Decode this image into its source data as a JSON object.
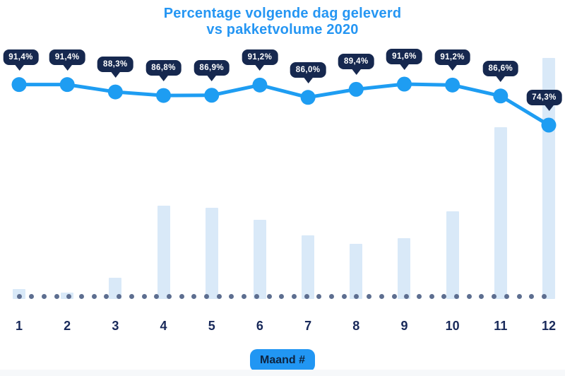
{
  "title": {
    "full": "Percentage volgende dag geleverd vs pakketvolume 2020",
    "line1": "Percentage volgende dag geleverd",
    "line2": "vs pakketvolume 2020"
  },
  "x_axis": {
    "label": "Maand #"
  },
  "colors": {
    "title_blue": "#2596f3",
    "line_blue": "#1e9df2",
    "badge_navy": "#16284f",
    "tick_navy": "#18295a",
    "bar_fill": "#d9e9f8",
    "dot_gray": "#5d6e90",
    "maand_bg": "#2196f3",
    "maand_text": "#0e2440",
    "footer_strip": "#f6f8fa"
  },
  "chart_data": {
    "type": "line",
    "subtype": "combo-line-over-bars",
    "title": "Percentage volgende dag geleverd vs pakketvolume 2020",
    "xlabel": "Maand #",
    "ylabel": "",
    "categories": [
      "1",
      "2",
      "3",
      "4",
      "5",
      "6",
      "7",
      "8",
      "9",
      "10",
      "11",
      "12"
    ],
    "y_axis_visible": false,
    "grid": false,
    "legend_position": "none",
    "baseline_style": "dotted",
    "series": [
      {
        "name": "Percentage volgende dag geleverd",
        "type": "line",
        "unit": "%",
        "values": [
          91.4,
          91.4,
          88.3,
          86.8,
          86.9,
          91.2,
          86.0,
          89.4,
          91.6,
          91.2,
          86.6,
          74.3
        ],
        "point_labels": [
          "91,4%",
          "91,4%",
          "88,3%",
          "86,8%",
          "86,9%",
          "91,2%",
          "86,0%",
          "89,4%",
          "91,6%",
          "91,2%",
          "86,6%",
          "74,3%"
        ]
      },
      {
        "name": "Pakketvolume 2020",
        "type": "bar",
        "unit": "relative (no value axis shown)",
        "values_pct_of_max": [
          4.1,
          2.6,
          8.8,
          38.7,
          37.8,
          32.8,
          26.4,
          22.9,
          25.2,
          36.4,
          71.3,
          100
        ]
      }
    ]
  }
}
